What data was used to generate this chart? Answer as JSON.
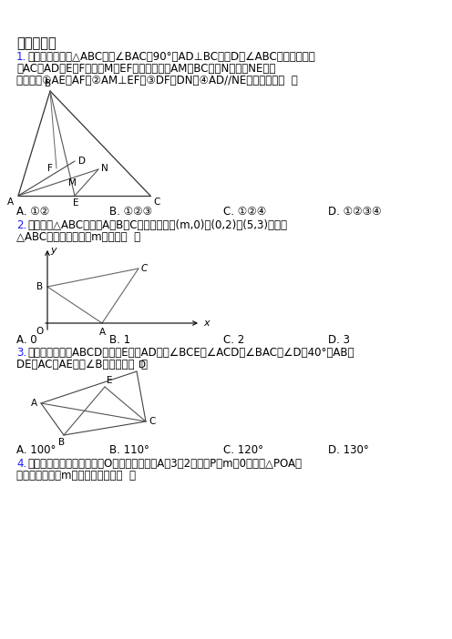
{
  "bg_color": "#ffffff",
  "blue_color": "#1a1aff",
  "section_title": "一、选择题",
  "q1_num": "1.",
  "q1_line1": "如图，等腰直角△ABC中，∠BAC＝90°，AD⊥BC于点D，∠ABC的平分线分别",
  "q1_line2": "交AC、AD于E、F两点，M为EF的中点，延长AM交BC于点N，连接NE，下",
  "q1_line3": "列结论：①AE＝AF；②AM⊥EF；③DF＝DN；④AD//NE，正确的有（  ）",
  "q1_ans_a": "A. ①②",
  "q1_ans_b": "B. ①②③",
  "q1_ans_c": "C. ①②④",
  "q1_ans_d": "D. ①②③④",
  "q2_num": "2.",
  "q2_line1": "如图，在△ABC中，点A、B、C的坐标分别为(m,0)、(0,2)和(5,3)，则当",
  "q2_line2": "△ABC的周长最小时，m的值为（  ）",
  "q2_ans_a": "A. 0",
  "q2_ans_b": "B. 1",
  "q2_ans_c": "C. 2",
  "q2_ans_d": "D. 3",
  "q3_num": "3.",
  "q3_line1": "如图，在四边形ABCD中，点E在边AD上，∠BCE＝∠ACD，∠BAC＝∠D＝40°，AB＝",
  "q3_line2": "DE，AC＝AE，则∠B的度数为（  ）",
  "q3_ans_a": "A. 100°",
  "q3_ans_b": "B. 110°",
  "q3_ans_c": "C. 120°",
  "q3_ans_d": "D. 130°",
  "q4_num": "4.",
  "q4_line1": "如图，平面直角坐标系中，O是坐标原点，点A（3，2），点P（m，0），若△POA是",
  "q4_line2": "等腰三角形，则m可取的值最多有（  ）"
}
